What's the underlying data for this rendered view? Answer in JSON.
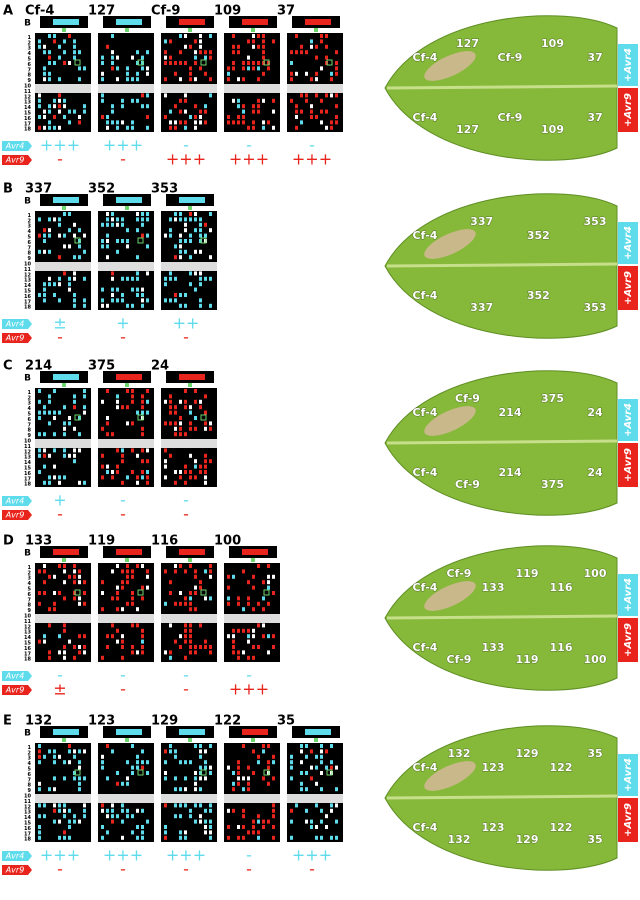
{
  "row_labels": [
    "B",
    "1",
    "2",
    "3",
    "4",
    "5",
    "6",
    "7",
    "8",
    "9",
    "10",
    "11",
    "12",
    "13",
    "14",
    "15",
    "16",
    "17",
    "18"
  ],
  "legend": {
    "avr4": "Avr4",
    "avr9": "Avr9"
  },
  "side_tags": {
    "avr4": "+Avr4",
    "avr9": "+Avr9"
  },
  "panels": [
    {
      "letter": "A",
      "constructs": [
        {
          "name": "Cf-4",
          "avr4": "+++",
          "avr9": "-"
        },
        {
          "name": "127",
          "avr4": "+++",
          "avr9": "-"
        },
        {
          "name": "Cf-9",
          "avr4": "-",
          "avr9": "+++"
        },
        {
          "name": "109",
          "avr4": "-",
          "avr9": "+++"
        },
        {
          "name": "37",
          "avr4": "-",
          "avr9": "+++"
        }
      ],
      "leaf_top": [
        "Cf-4",
        "127",
        "Cf-9",
        "109",
        "37"
      ],
      "leaf_bottom": [
        "Cf-4",
        "127",
        "Cf-9",
        "109",
        "37"
      ]
    },
    {
      "letter": "B",
      "constructs": [
        {
          "name": "337",
          "avr4": "±",
          "avr9": "-"
        },
        {
          "name": "352",
          "avr4": "+",
          "avr9": "-"
        },
        {
          "name": "353",
          "avr4": "++",
          "avr9": "-"
        }
      ],
      "leaf_top": [
        "Cf-4",
        "337",
        "352",
        "353"
      ],
      "leaf_bottom": [
        "Cf-4",
        "337",
        "352",
        "353"
      ]
    },
    {
      "letter": "C",
      "constructs": [
        {
          "name": "214",
          "avr4": "+",
          "avr9": "-"
        },
        {
          "name": "375",
          "avr4": "-",
          "avr9": "-"
        },
        {
          "name": "24",
          "avr4": "-",
          "avr9": "-"
        }
      ],
      "leaf_top": [
        "Cf-4",
        "Cf-9",
        "214",
        "375",
        "24"
      ],
      "leaf_bottom": [
        "Cf-4",
        "Cf-9",
        "214",
        "375",
        "24"
      ]
    },
    {
      "letter": "D",
      "constructs": [
        {
          "name": "133",
          "avr4": "-",
          "avr9": "±"
        },
        {
          "name": "119",
          "avr4": "-",
          "avr9": "-"
        },
        {
          "name": "116",
          "avr4": "-",
          "avr9": "-"
        },
        {
          "name": "100",
          "avr4": "-",
          "avr9": "+++"
        }
      ],
      "leaf_top": [
        "Cf-4",
        "Cf-9",
        "133",
        "119",
        "116",
        "100"
      ],
      "leaf_bottom": [
        "Cf-4",
        "Cf-9",
        "133",
        "119",
        "116",
        "100"
      ]
    },
    {
      "letter": "E",
      "constructs": [
        {
          "name": "132",
          "avr4": "+++",
          "avr9": "-"
        },
        {
          "name": "123",
          "avr4": "+++",
          "avr9": "-"
        },
        {
          "name": "129",
          "avr4": "+++",
          "avr9": "-"
        },
        {
          "name": "122",
          "avr4": "-",
          "avr9": "-"
        },
        {
          "name": "35",
          "avr4": "+++",
          "avr9": "-"
        }
      ],
      "leaf_top": [
        "Cf-4",
        "132",
        "123",
        "129",
        "122",
        "35"
      ],
      "leaf_bottom": [
        "Cf-4",
        "132",
        "123",
        "129",
        "122",
        "35"
      ]
    }
  ]
}
